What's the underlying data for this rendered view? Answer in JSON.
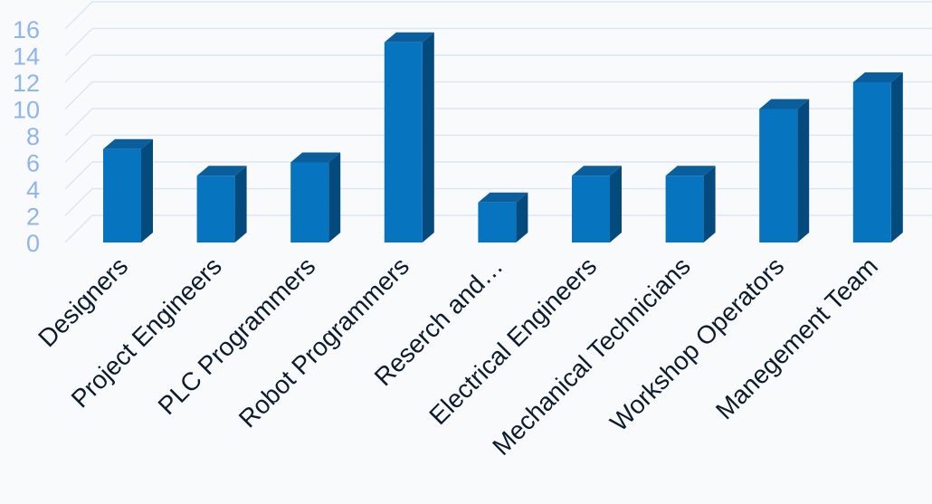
{
  "chart_data": {
    "type": "bar",
    "categories": [
      "Designers",
      "Project Engineers",
      "PLC Programmers",
      "Robot Programmers",
      "Reserch and…",
      "Electrical Engineers",
      "Mechanical Technicians",
      "Workshop Operators",
      "Manegement Team"
    ],
    "values": [
      7,
      5,
      6,
      15,
      3,
      5,
      5,
      10,
      12
    ],
    "ylim": [
      0,
      16
    ],
    "yticks": [
      0,
      2,
      4,
      6,
      8,
      10,
      12,
      14,
      16
    ],
    "grid": true,
    "legend": "none",
    "style": "3d-column",
    "colors": {
      "bar_front": "#0774bf",
      "bar_side": "#044a7d",
      "bar_top": "#0a5e9b",
      "gridline": "#dde6f5",
      "ytick_text": "#8fb4ee",
      "xtick_text": "#0d1b2e",
      "background": "#f9fafc"
    }
  }
}
